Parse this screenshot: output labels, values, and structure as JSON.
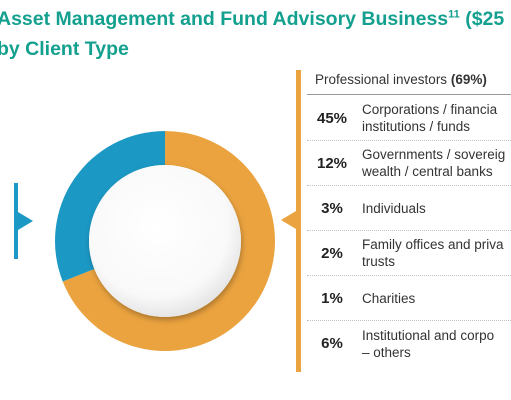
{
  "title": {
    "line1": "Asset Management and Fund Advisory Business",
    "footnote": "11",
    "line1_suffix": " ($25",
    "line2": "by Client Type"
  },
  "colors": {
    "teal_title": "#14a08f",
    "professional": "#eba33f",
    "other": "#1b98c4"
  },
  "chart_data": {
    "type": "pie",
    "style": "donut",
    "slices": [
      {
        "label": "Professional investors",
        "value": 69,
        "color": "#eba33f"
      },
      {
        "label": "",
        "value": 31,
        "color": "#1b98c4"
      }
    ]
  },
  "breakdown": {
    "header_label": "Professional investors",
    "header_value": "(69%)",
    "rows": [
      {
        "pct": "45%",
        "label": "Corporations / financia\ninstitutions / funds"
      },
      {
        "pct": "12%",
        "label": "Governments / sovereig\nwealth / central banks"
      },
      {
        "pct": "3%",
        "label": "Individuals"
      },
      {
        "pct": "2%",
        "label": "Family offices and priva\ntrusts"
      },
      {
        "pct": "1%",
        "label": "Charities"
      },
      {
        "pct": "6%",
        "label": "Institutional and corpo\n– others"
      }
    ]
  }
}
